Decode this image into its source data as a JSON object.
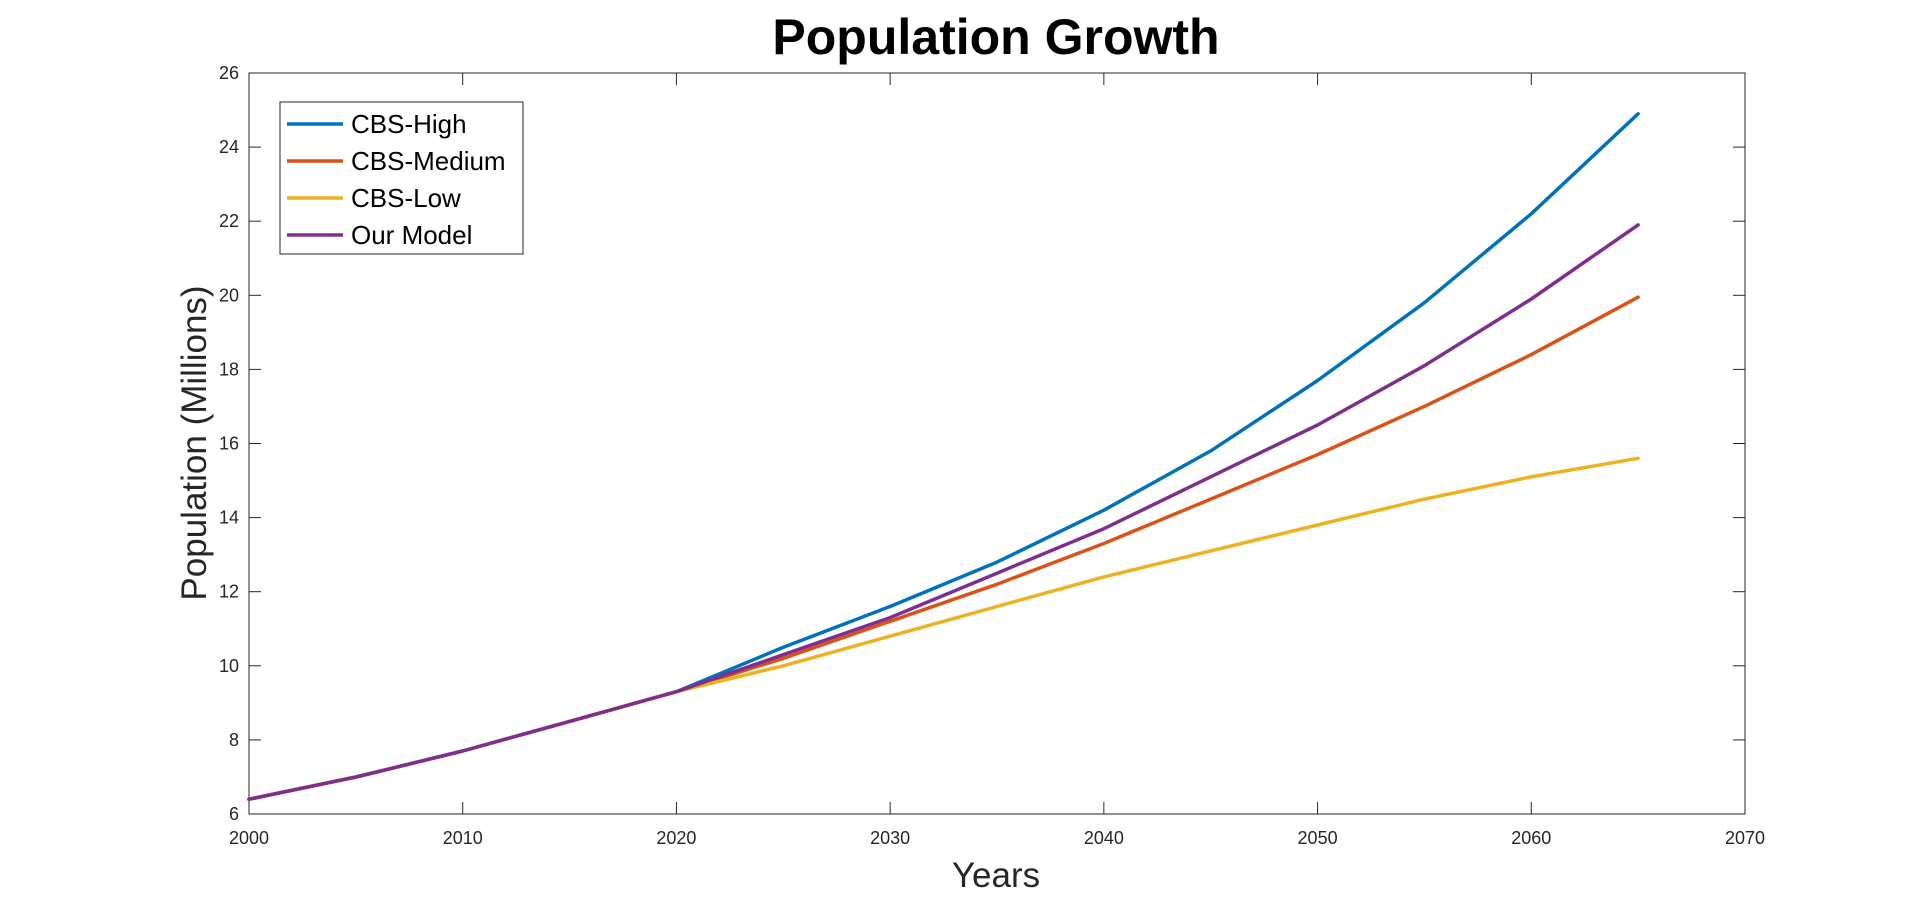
{
  "chart_data": {
    "type": "line",
    "title": "Population Growth",
    "xlabel": "Years",
    "ylabel": "Population (Millions)",
    "xlim": [
      2000,
      2070
    ],
    "ylim": [
      6,
      26
    ],
    "xticks": [
      2000,
      2010,
      2020,
      2030,
      2040,
      2050,
      2060,
      2070
    ],
    "yticks": [
      6,
      8,
      10,
      12,
      14,
      16,
      18,
      20,
      22,
      24,
      26
    ],
    "grid": false,
    "legend_position": "top-left",
    "series": [
      {
        "name": "CBS-High",
        "color": "#0072BD",
        "x": [
          2000,
          2005,
          2010,
          2015,
          2020,
          2025,
          2030,
          2035,
          2040,
          2045,
          2050,
          2055,
          2060,
          2065
        ],
        "values": [
          6.4,
          7.0,
          7.7,
          8.5,
          9.3,
          10.5,
          11.6,
          12.8,
          14.2,
          15.8,
          17.7,
          19.8,
          22.2,
          24.9
        ]
      },
      {
        "name": "CBS-Medium",
        "color": "#D95319",
        "x": [
          2000,
          2005,
          2010,
          2015,
          2020,
          2025,
          2030,
          2035,
          2040,
          2045,
          2050,
          2055,
          2060,
          2065
        ],
        "values": [
          6.4,
          7.0,
          7.7,
          8.5,
          9.3,
          10.2,
          11.2,
          12.2,
          13.3,
          14.5,
          15.7,
          17.0,
          18.4,
          19.95
        ]
      },
      {
        "name": "CBS-Low",
        "color": "#EDB120",
        "x": [
          2000,
          2005,
          2010,
          2015,
          2020,
          2025,
          2030,
          2035,
          2040,
          2045,
          2050,
          2055,
          2060,
          2065
        ],
        "values": [
          6.4,
          7.0,
          7.7,
          8.5,
          9.3,
          10.0,
          10.8,
          11.6,
          12.4,
          13.1,
          13.8,
          14.5,
          15.1,
          15.6
        ]
      },
      {
        "name": "Our Model",
        "color": "#7E2F8E",
        "x": [
          2000,
          2005,
          2010,
          2015,
          2020,
          2025,
          2030,
          2035,
          2040,
          2045,
          2050,
          2055,
          2060,
          2065
        ],
        "values": [
          6.4,
          7.0,
          7.7,
          8.5,
          9.3,
          10.3,
          11.3,
          12.5,
          13.7,
          15.1,
          16.5,
          18.1,
          19.9,
          21.9
        ]
      }
    ]
  }
}
